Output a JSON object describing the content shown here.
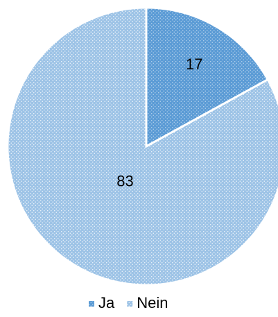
{
  "chart_data": {
    "type": "pie",
    "categories": [
      "Ja",
      "Nein"
    ],
    "values": [
      17,
      83
    ],
    "colors": [
      "#5b9bd5",
      "#9dc3e6"
    ],
    "legend": "bottom"
  }
}
